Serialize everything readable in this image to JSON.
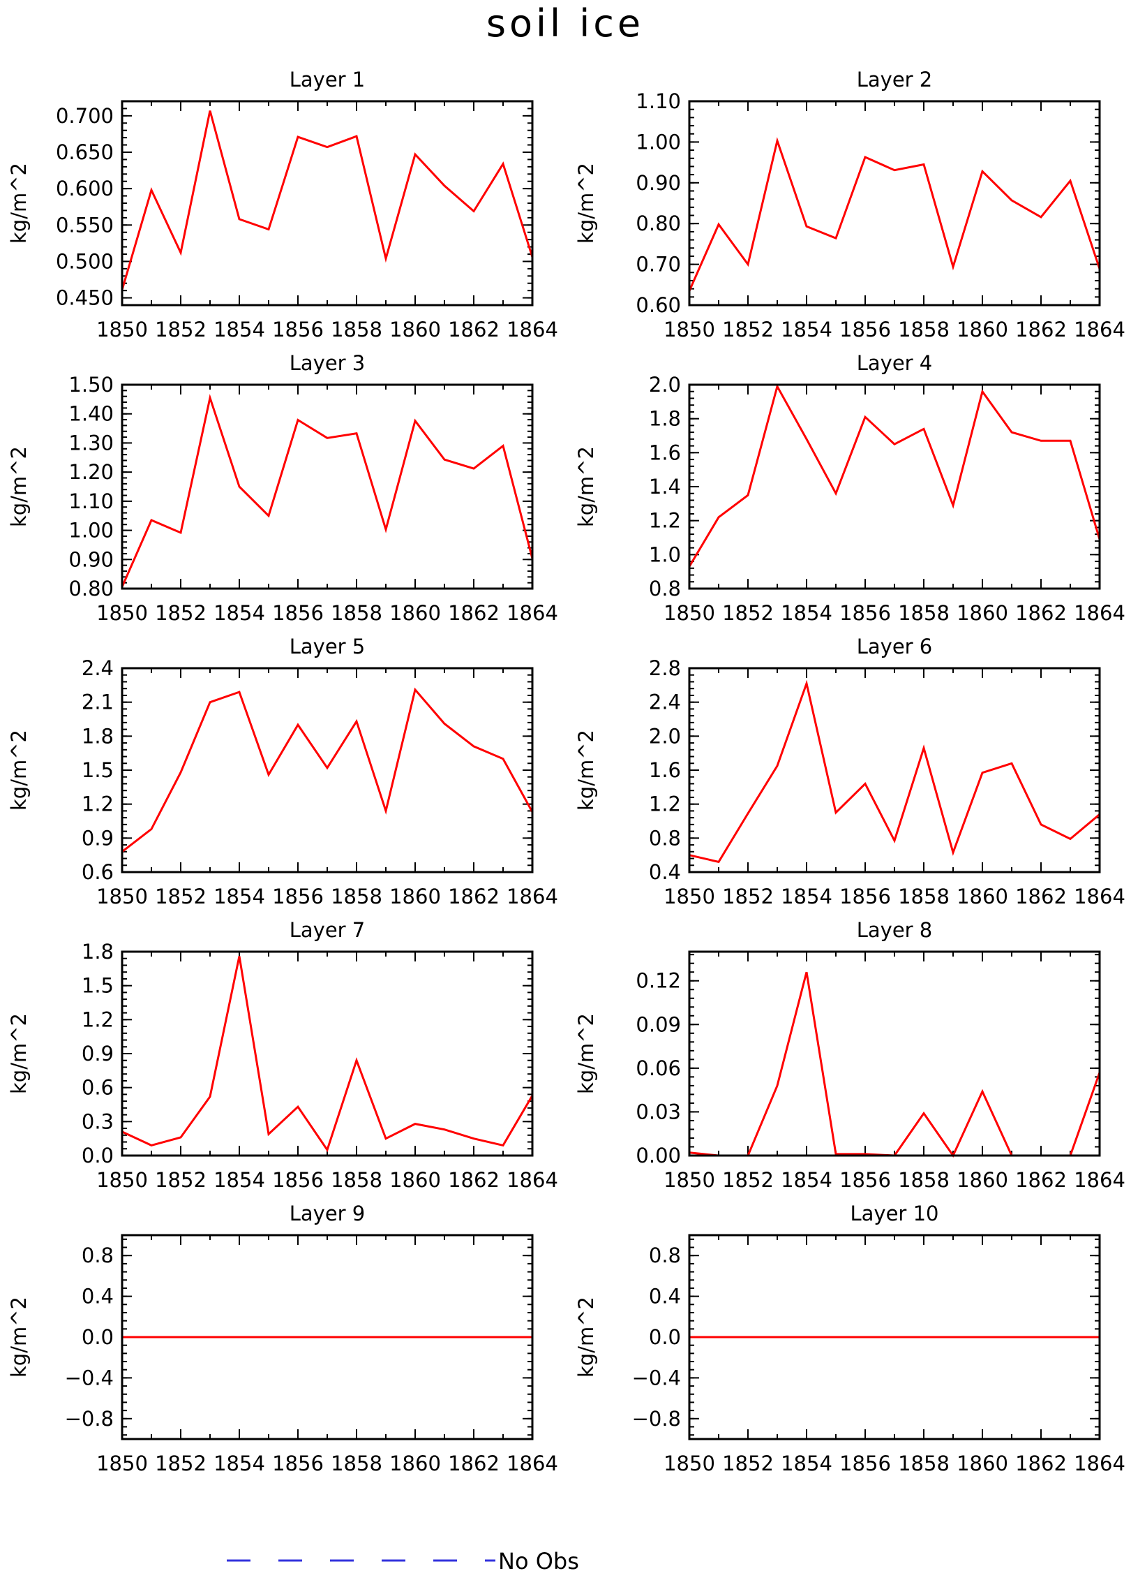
{
  "title": "soil ice",
  "legend": {
    "label": "No Obs",
    "line_color": "#3333dd",
    "line_style": "dashed"
  },
  "chart_data": [
    {
      "type": "line",
      "title": "Layer 1",
      "ylabel": "kg/m^2",
      "color": "#ff0000",
      "x": [
        1850,
        1851,
        1852,
        1853,
        1854,
        1855,
        1856,
        1857,
        1858,
        1859,
        1860,
        1861,
        1862,
        1863,
        1864
      ],
      "xlim": [
        1850,
        1864
      ],
      "xticks": [
        1850,
        1852,
        1854,
        1856,
        1858,
        1860,
        1862,
        1864
      ],
      "xtick_labels": [
        "1850",
        "1852",
        "1854",
        "1856",
        "1858",
        "1860",
        "1862",
        "1864"
      ],
      "ylim": [
        0.44,
        0.72
      ],
      "yticks": [
        0.45,
        0.5,
        0.55,
        0.6,
        0.65,
        0.7
      ],
      "ytick_labels": [
        "0.450",
        "0.500",
        "0.550",
        "0.600",
        "0.650",
        "0.700"
      ],
      "values": [
        0.461,
        0.598,
        0.512,
        0.707,
        0.558,
        0.544,
        0.671,
        0.657,
        0.672,
        0.504,
        0.647,
        0.604,
        0.569,
        0.634,
        0.506
      ]
    },
    {
      "type": "line",
      "title": "Layer 2",
      "ylabel": "kg/m^2",
      "color": "#ff0000",
      "x": [
        1850,
        1851,
        1852,
        1853,
        1854,
        1855,
        1856,
        1857,
        1858,
        1859,
        1860,
        1861,
        1862,
        1863,
        1864
      ],
      "xlim": [
        1850,
        1864
      ],
      "xticks": [
        1850,
        1852,
        1854,
        1856,
        1858,
        1860,
        1862,
        1864
      ],
      "xtick_labels": [
        "1850",
        "1852",
        "1854",
        "1856",
        "1858",
        "1860",
        "1862",
        "1864"
      ],
      "ylim": [
        0.6,
        1.1
      ],
      "yticks": [
        0.6,
        0.7,
        0.8,
        0.9,
        1.0,
        1.1
      ],
      "ytick_labels": [
        "0.60",
        "0.70",
        "0.80",
        "0.90",
        "1.00",
        "1.10"
      ],
      "values": [
        0.635,
        0.798,
        0.7,
        1.003,
        0.793,
        0.764,
        0.963,
        0.931,
        0.945,
        0.694,
        0.928,
        0.857,
        0.816,
        0.905,
        0.689
      ]
    },
    {
      "type": "line",
      "title": "Layer 3",
      "ylabel": "kg/m^2",
      "color": "#ff0000",
      "x": [
        1850,
        1851,
        1852,
        1853,
        1854,
        1855,
        1856,
        1857,
        1858,
        1859,
        1860,
        1861,
        1862,
        1863,
        1864
      ],
      "xlim": [
        1850,
        1864
      ],
      "xticks": [
        1850,
        1852,
        1854,
        1856,
        1858,
        1860,
        1862,
        1864
      ],
      "xtick_labels": [
        "1850",
        "1852",
        "1854",
        "1856",
        "1858",
        "1860",
        "1862",
        "1864"
      ],
      "ylim": [
        0.8,
        1.5
      ],
      "yticks": [
        0.8,
        0.9,
        1.0,
        1.1,
        1.2,
        1.3,
        1.4,
        1.5
      ],
      "ytick_labels": [
        "0.80",
        "0.90",
        "1.00",
        "1.10",
        "1.20",
        "1.30",
        "1.40",
        "1.50"
      ],
      "values": [
        0.806,
        1.035,
        0.992,
        1.455,
        1.15,
        1.05,
        1.379,
        1.317,
        1.333,
        1.003,
        1.376,
        1.243,
        1.212,
        1.29,
        0.903
      ]
    },
    {
      "type": "line",
      "title": "Layer 4",
      "ylabel": "kg/m^2",
      "color": "#ff0000",
      "x": [
        1850,
        1851,
        1852,
        1853,
        1854,
        1855,
        1856,
        1857,
        1858,
        1859,
        1860,
        1861,
        1862,
        1863,
        1864
      ],
      "xlim": [
        1850,
        1864
      ],
      "xticks": [
        1850,
        1852,
        1854,
        1856,
        1858,
        1860,
        1862,
        1864
      ],
      "xtick_labels": [
        "1850",
        "1852",
        "1854",
        "1856",
        "1858",
        "1860",
        "1862",
        "1864"
      ],
      "ylim": [
        0.8,
        2.0
      ],
      "yticks": [
        0.8,
        1.0,
        1.2,
        1.4,
        1.6,
        1.8,
        2.0
      ],
      "ytick_labels": [
        "0.8",
        "1.0",
        "1.2",
        "1.4",
        "1.6",
        "1.8",
        "2.0"
      ],
      "values": [
        0.93,
        1.22,
        1.35,
        1.99,
        1.68,
        1.36,
        1.81,
        1.65,
        1.74,
        1.29,
        1.96,
        1.72,
        1.67,
        1.67,
        1.09
      ]
    },
    {
      "type": "line",
      "title": "Layer 5",
      "ylabel": "kg/m^2",
      "color": "#ff0000",
      "x": [
        1850,
        1851,
        1852,
        1853,
        1854,
        1855,
        1856,
        1857,
        1858,
        1859,
        1860,
        1861,
        1862,
        1863,
        1864
      ],
      "xlim": [
        1850,
        1864
      ],
      "xticks": [
        1850,
        1852,
        1854,
        1856,
        1858,
        1860,
        1862,
        1864
      ],
      "xtick_labels": [
        "1850",
        "1852",
        "1854",
        "1856",
        "1858",
        "1860",
        "1862",
        "1864"
      ],
      "ylim": [
        0.6,
        2.4
      ],
      "yticks": [
        0.6,
        0.9,
        1.2,
        1.5,
        1.8,
        2.1,
        2.4
      ],
      "ytick_labels": [
        "0.6",
        "0.9",
        "1.2",
        "1.5",
        "1.8",
        "2.1",
        "2.4"
      ],
      "values": [
        0.78,
        0.98,
        1.48,
        2.1,
        2.19,
        1.46,
        1.9,
        1.52,
        1.93,
        1.14,
        2.21,
        1.91,
        1.71,
        1.6,
        1.13
      ]
    },
    {
      "type": "line",
      "title": "Layer 6",
      "ylabel": "kg/m^2",
      "color": "#ff0000",
      "x": [
        1850,
        1851,
        1852,
        1853,
        1854,
        1855,
        1856,
        1857,
        1858,
        1859,
        1860,
        1861,
        1862,
        1863,
        1864
      ],
      "xlim": [
        1850,
        1864
      ],
      "xticks": [
        1850,
        1852,
        1854,
        1856,
        1858,
        1860,
        1862,
        1864
      ],
      "xtick_labels": [
        "1850",
        "1852",
        "1854",
        "1856",
        "1858",
        "1860",
        "1862",
        "1864"
      ],
      "ylim": [
        0.4,
        2.8
      ],
      "yticks": [
        0.4,
        0.8,
        1.2,
        1.6,
        2.0,
        2.4,
        2.8
      ],
      "ytick_labels": [
        "0.4",
        "0.8",
        "1.2",
        "1.6",
        "2.0",
        "2.4",
        "2.8"
      ],
      "values": [
        0.6,
        0.52,
        1.09,
        1.65,
        2.62,
        1.1,
        1.44,
        0.77,
        1.86,
        0.63,
        1.57,
        1.68,
        0.96,
        0.79,
        1.08
      ]
    },
    {
      "type": "line",
      "title": "Layer 7",
      "ylabel": "kg/m^2",
      "color": "#ff0000",
      "x": [
        1850,
        1851,
        1852,
        1853,
        1854,
        1855,
        1856,
        1857,
        1858,
        1859,
        1860,
        1861,
        1862,
        1863,
        1864
      ],
      "xlim": [
        1850,
        1864
      ],
      "xticks": [
        1850,
        1852,
        1854,
        1856,
        1858,
        1860,
        1862,
        1864
      ],
      "xtick_labels": [
        "1850",
        "1852",
        "1854",
        "1856",
        "1858",
        "1860",
        "1862",
        "1864"
      ],
      "ylim": [
        0.0,
        1.8
      ],
      "yticks": [
        0.0,
        0.3,
        0.6,
        0.9,
        1.2,
        1.5,
        1.8
      ],
      "ytick_labels": [
        "0.0",
        "0.3",
        "0.6",
        "0.9",
        "1.2",
        "1.5",
        "1.8"
      ],
      "values": [
        0.21,
        0.09,
        0.16,
        0.52,
        1.76,
        0.19,
        0.43,
        0.05,
        0.84,
        0.15,
        0.28,
        0.23,
        0.15,
        0.09,
        0.53
      ]
    },
    {
      "type": "line",
      "title": "Layer 8",
      "ylabel": "kg/m^2",
      "color": "#ff0000",
      "x": [
        1850,
        1851,
        1852,
        1853,
        1854,
        1855,
        1856,
        1857,
        1858,
        1859,
        1860,
        1861,
        1862,
        1863,
        1864
      ],
      "xlim": [
        1850,
        1864
      ],
      "xticks": [
        1850,
        1852,
        1854,
        1856,
        1858,
        1860,
        1862,
        1864
      ],
      "xtick_labels": [
        "1850",
        "1852",
        "1854",
        "1856",
        "1858",
        "1860",
        "1862",
        "1864"
      ],
      "ylim": [
        0.0,
        0.14
      ],
      "yticks": [
        0.0,
        0.03,
        0.06,
        0.09,
        0.12
      ],
      "ytick_labels": [
        "0.00",
        "0.03",
        "0.06",
        "0.09",
        "0.12"
      ],
      "values": [
        0.002,
        0.0,
        0.0,
        0.048,
        0.126,
        0.001,
        0.001,
        0.0,
        0.029,
        0.0,
        0.044,
        0.0,
        0.0,
        0.0,
        0.057
      ]
    },
    {
      "type": "line",
      "title": "Layer 9",
      "ylabel": "kg/m^2",
      "color": "#ff0000",
      "x": [
        1850,
        1851,
        1852,
        1853,
        1854,
        1855,
        1856,
        1857,
        1858,
        1859,
        1860,
        1861,
        1862,
        1863,
        1864
      ],
      "xlim": [
        1850,
        1864
      ],
      "xticks": [
        1850,
        1852,
        1854,
        1856,
        1858,
        1860,
        1862,
        1864
      ],
      "xtick_labels": [
        "1850",
        "1852",
        "1854",
        "1856",
        "1858",
        "1860",
        "1862",
        "1864"
      ],
      "ylim": [
        -1.0,
        1.0
      ],
      "yticks": [
        -0.8,
        -0.4,
        0.0,
        0.4,
        0.8
      ],
      "ytick_labels": [
        "−0.8",
        "−0.4",
        "0.0",
        "0.4",
        "0.8"
      ],
      "values": [
        0,
        0,
        0,
        0,
        0,
        0,
        0,
        0,
        0,
        0,
        0,
        0,
        0,
        0,
        0
      ]
    },
    {
      "type": "line",
      "title": "Layer 10",
      "ylabel": "kg/m^2",
      "color": "#ff0000",
      "x": [
        1850,
        1851,
        1852,
        1853,
        1854,
        1855,
        1856,
        1857,
        1858,
        1859,
        1860,
        1861,
        1862,
        1863,
        1864
      ],
      "xlim": [
        1850,
        1864
      ],
      "xticks": [
        1850,
        1852,
        1854,
        1856,
        1858,
        1860,
        1862,
        1864
      ],
      "xtick_labels": [
        "1850",
        "1852",
        "1854",
        "1856",
        "1858",
        "1860",
        "1862",
        "1864"
      ],
      "ylim": [
        -1.0,
        1.0
      ],
      "yticks": [
        -0.8,
        -0.4,
        0.0,
        0.4,
        0.8
      ],
      "ytick_labels": [
        "−0.8",
        "−0.4",
        "0.0",
        "0.4",
        "0.8"
      ],
      "values": [
        0,
        0,
        0,
        0,
        0,
        0,
        0,
        0,
        0,
        0,
        0,
        0,
        0,
        0,
        0
      ]
    }
  ]
}
